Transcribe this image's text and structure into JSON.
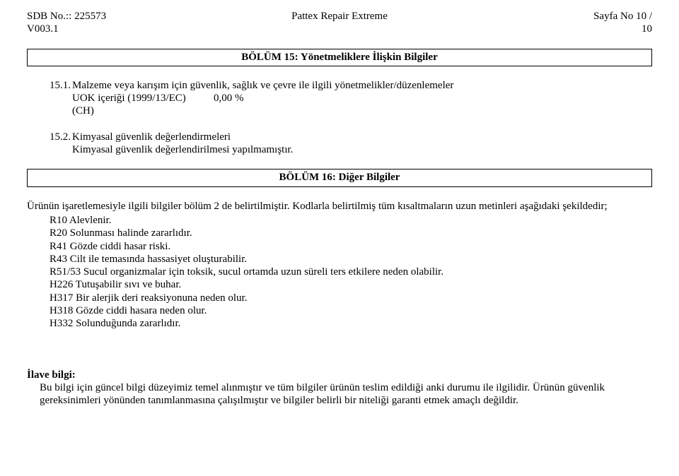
{
  "header": {
    "sdb_line": "SDB No.:: 225573",
    "version": "V003.1",
    "product": "Pattex Repair Extreme",
    "page_label": "Sayfa No 10 /",
    "page_total": "10"
  },
  "section15": {
    "title": "BÖLÜM 15: Yönetmeliklere İlişkin Bilgiler",
    "item1_num": "15.1.",
    "item1_text": "Malzeme veya karışım için güvenlik, sağlık ve çevre ile ilgili yönetmelikler/düzenlemeler",
    "uok_label": "UOK içeriği (1999/13/EC)",
    "uok_value": "0,00 %",
    "uok_ch": "(CH)",
    "item2_num": "15.2.",
    "item2_text": "Kimyasal güvenlik değerlendirmeleri",
    "item2_sub": "Kimyasal güvenlik değerlendirilmesi yapılmamıştır."
  },
  "section16": {
    "title": "BÖLÜM 16: Diğer Bilgiler",
    "intro1": "Ürünün işaretlemesiyle ilgili bilgiler bölüm 2 de belirtilmiştir. Kodlarla belirtilmiş tüm kısaltmaların uzun metinleri aşağıdaki şekildedir;",
    "r10": "R10 Alevlenir.",
    "r20": "R20 Solunması halinde zararlıdır.",
    "r41": "R41 Gözde ciddi hasar riski.",
    "r43": "R43 Cilt ile temasında hassasiyet oluşturabilir.",
    "r51_53": "R51/53 Sucul organizmalar için toksik, sucul ortamda uzun süreli ters etkilere neden olabilir.",
    "h226": "H226 Tutuşabilir sıvı ve buhar.",
    "h317": "H317 Bir alerjik deri reaksiyonuna neden olur.",
    "h318": "H318 Gözde ciddi hasara neden olur.",
    "h332": "H332 Solunduğunda zararlıdır."
  },
  "footer": {
    "title": "İlave bilgi:",
    "body": "Bu bilgi için güncel bilgi düzeyimiz temel alınmıştır ve tüm bilgiler ürünün teslim edildiği anki durumu ile ilgilidir. Ürünün güvenlik gereksinimleri yönünden tanımlanmasına çalışılmıştır ve bilgiler belirli bir niteliği garanti etmek amaçlı değildir."
  }
}
